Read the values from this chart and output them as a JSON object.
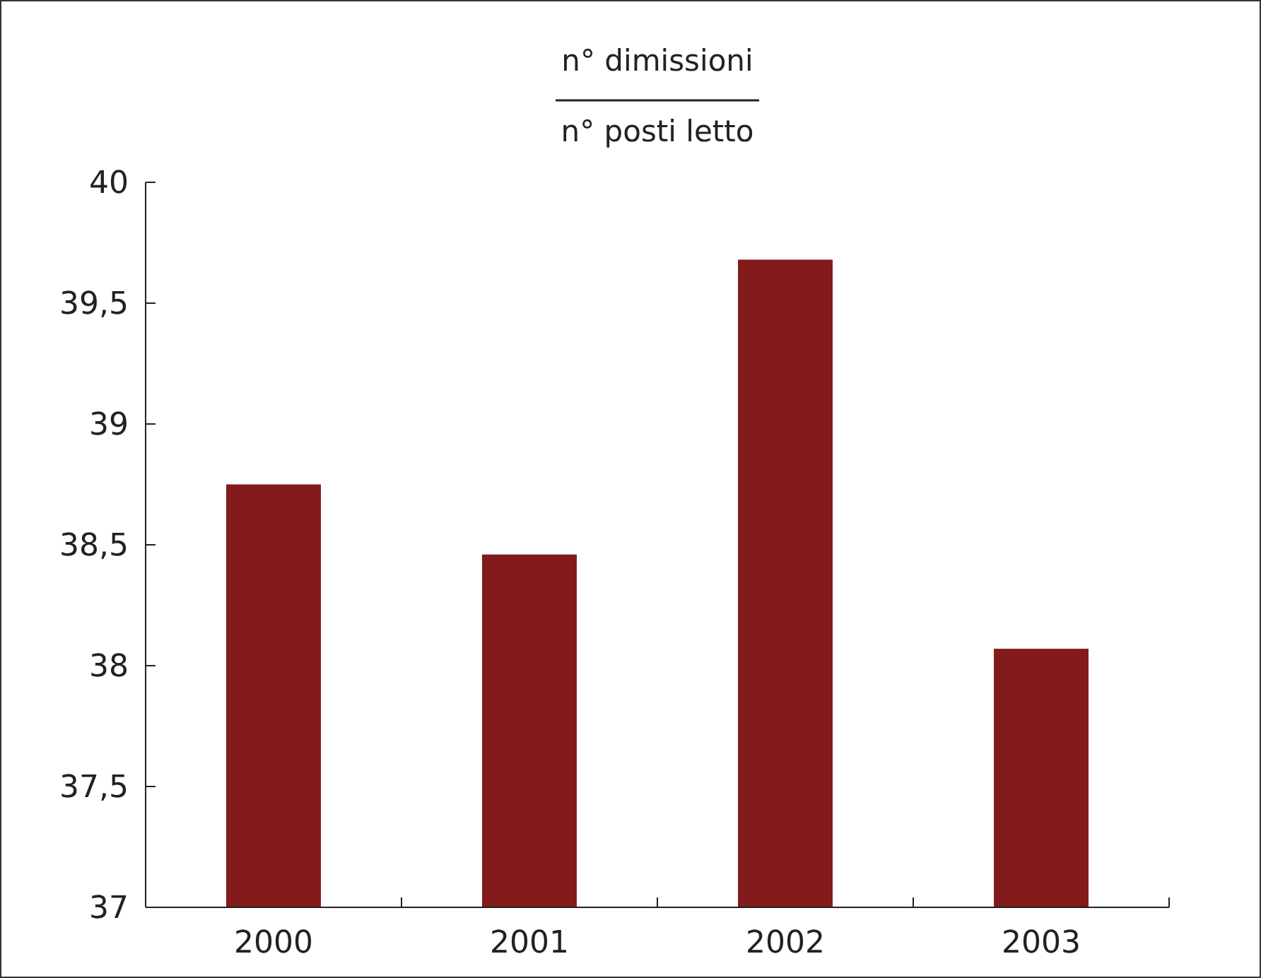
{
  "chart_data": {
    "type": "bar",
    "title": "n° dimissioni",
    "subtitle": "n° posti letto",
    "categories": [
      "2000",
      "2001",
      "2002",
      "2003"
    ],
    "values": [
      38.75,
      38.46,
      39.68,
      38.07
    ],
    "color": "#831a1c",
    "ylim": [
      37,
      40
    ],
    "yticks": [
      {
        "value": 37,
        "label": "37"
      },
      {
        "value": 37.5,
        "label": "37,5"
      },
      {
        "value": 38,
        "label": "38"
      },
      {
        "value": 38.5,
        "label": "38,5"
      },
      {
        "value": 39,
        "label": "39"
      },
      {
        "value": 39.5,
        "label": "39,5"
      },
      {
        "value": 40,
        "label": "40"
      }
    ],
    "grid": false
  }
}
